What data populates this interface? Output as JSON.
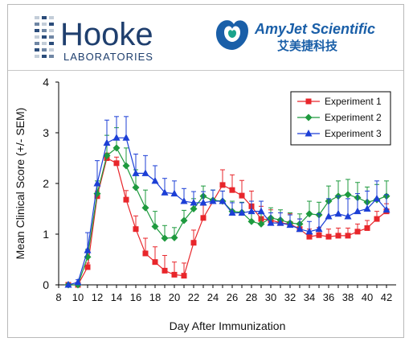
{
  "logos": {
    "hooke": {
      "name": "Hooke",
      "sub": "LABORATORIES",
      "color": "#1f3f6e"
    },
    "amyjet": {
      "name": "AmyJet Scientific",
      "cn": "艾美捷科技",
      "color": "#1a5fa8",
      "accent": "#1aa38c"
    }
  },
  "chart_data": {
    "type": "line",
    "xlabel": "Day After Immunization",
    "ylabel": "Mean Clinical Score (+/- SEM)",
    "xlim": [
      8,
      43
    ],
    "ylim": [
      0,
      4
    ],
    "xticks": [
      8,
      9,
      10,
      11,
      12,
      13,
      14,
      15,
      16,
      17,
      18,
      19,
      20,
      21,
      22,
      23,
      24,
      25,
      26,
      27,
      28,
      29,
      30,
      31,
      32,
      33,
      34,
      35,
      36,
      37,
      38,
      39,
      40,
      41,
      42
    ],
    "yticks": [
      0,
      1,
      2,
      3,
      4
    ],
    "legend_position": "top-right",
    "error_bars": "upper only",
    "series": [
      {
        "name": "Experiment 1",
        "color": "#e8262b",
        "marker": "square",
        "x": [
          9,
          10,
          11,
          12,
          13,
          14,
          15,
          16,
          17,
          18,
          19,
          20,
          21,
          22,
          23,
          25,
          26,
          27,
          28,
          29,
          30,
          31,
          32,
          33,
          34,
          35,
          36,
          37,
          38,
          39,
          40,
          41,
          42
        ],
        "y": [
          0,
          0,
          0.35,
          1.75,
          2.5,
          2.4,
          1.68,
          1.1,
          0.62,
          0.45,
          0.28,
          0.2,
          0.18,
          0.83,
          1.32,
          1.97,
          1.87,
          1.76,
          1.55,
          1.3,
          1.28,
          1.22,
          1.2,
          1.1,
          0.95,
          0.98,
          0.95,
          0.97,
          0.97,
          1.05,
          1.12,
          1.3,
          1.45
        ],
        "err": [
          0,
          0,
          0.08,
          0.1,
          0.1,
          0.12,
          0.18,
          0.26,
          0.3,
          0.3,
          0.3,
          0.25,
          0.25,
          0.25,
          0.25,
          0.3,
          0.3,
          0.3,
          0.3,
          0.25,
          0.2,
          0.2,
          0.2,
          0.2,
          0.15,
          0.15,
          0.15,
          0.15,
          0.15,
          0.15,
          0.15,
          0.15,
          0.15
        ]
      },
      {
        "name": "Experiment 2",
        "color": "#1e9a3e",
        "marker": "diamond",
        "x": [
          9,
          10,
          11,
          12,
          13,
          14,
          15,
          16,
          17,
          18,
          19,
          20,
          21,
          22,
          23,
          24,
          25,
          26,
          27,
          28,
          29,
          30,
          31,
          32,
          33,
          34,
          35,
          36,
          37,
          38,
          39,
          40,
          41,
          42
        ],
        "y": [
          0,
          0,
          0.55,
          1.8,
          2.55,
          2.7,
          2.35,
          1.92,
          1.52,
          1.15,
          0.92,
          0.93,
          1.27,
          1.5,
          1.75,
          1.67,
          1.65,
          1.45,
          1.43,
          1.25,
          1.2,
          1.32,
          1.28,
          1.22,
          1.2,
          1.4,
          1.38,
          1.65,
          1.75,
          1.78,
          1.72,
          1.63,
          1.68,
          1.75
        ],
        "err": [
          0,
          0,
          0.15,
          0.25,
          0.4,
          0.4,
          0.35,
          0.35,
          0.35,
          0.3,
          0.25,
          0.2,
          0.2,
          0.2,
          0.2,
          0.2,
          0.2,
          0.2,
          0.2,
          0.2,
          0.2,
          0.2,
          0.2,
          0.2,
          0.2,
          0.25,
          0.25,
          0.3,
          0.3,
          0.3,
          0.3,
          0.3,
          0.3,
          0.3
        ]
      },
      {
        "name": "Experiment 3",
        "color": "#1c3fd6",
        "marker": "triangle",
        "x": [
          9,
          10,
          11,
          12,
          13,
          14,
          15,
          16,
          17,
          18,
          19,
          20,
          21,
          22,
          23,
          24,
          25,
          26,
          27,
          28,
          29,
          30,
          31,
          32,
          33,
          34,
          35,
          36,
          37,
          38,
          39,
          40,
          41,
          42
        ],
        "y": [
          0,
          0.05,
          0.68,
          2.0,
          2.8,
          2.9,
          2.9,
          2.2,
          2.2,
          2.05,
          1.82,
          1.8,
          1.65,
          1.62,
          1.62,
          1.65,
          1.65,
          1.42,
          1.42,
          1.45,
          1.45,
          1.22,
          1.22,
          1.18,
          1.1,
          1.05,
          1.1,
          1.35,
          1.4,
          1.35,
          1.45,
          1.5,
          1.7,
          1.48
        ],
        "err": [
          0,
          0.05,
          0.35,
          0.45,
          0.45,
          0.42,
          0.42,
          0.38,
          0.35,
          0.3,
          0.28,
          0.25,
          0.25,
          0.22,
          0.22,
          0.22,
          0.2,
          0.2,
          0.2,
          0.2,
          0.2,
          0.2,
          0.2,
          0.2,
          0.2,
          0.2,
          0.3,
          0.35,
          0.35,
          0.35,
          0.35,
          0.35,
          0.35,
          0.3
        ]
      }
    ]
  }
}
